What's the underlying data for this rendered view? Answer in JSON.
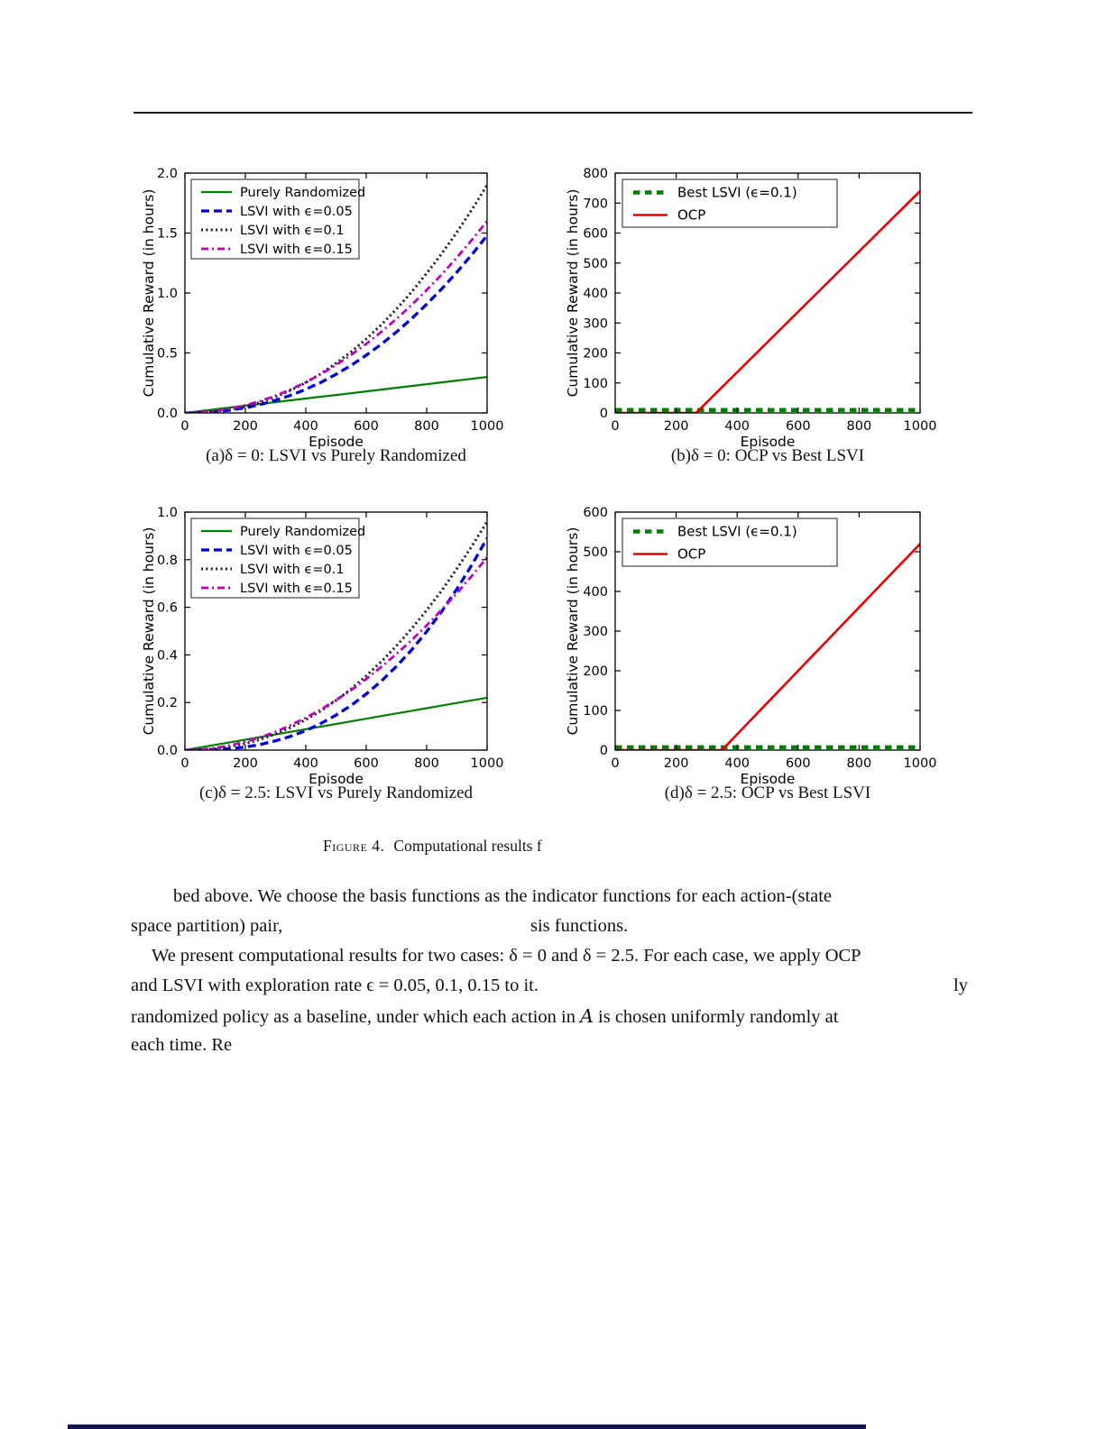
{
  "page": {
    "figure_caption": {
      "label": "Figure 4.",
      "text": "Computational results f"
    },
    "body": {
      "line1": "bed above. We choose the basis functions as the indicator functions for each action-(state",
      "line2_left": "space partition) pair,",
      "line2_mid": "sis functions.",
      "line3": "We present computational results for two cases: δ = 0 and δ = 2.5. For each case, we apply OCP",
      "line4_left": "and LSVI with exploration rate ϵ = 0.05, 0.1, 0.15 to it.",
      "line4_right": "ly",
      "line5_pre": "randomized policy as a baseline, under which each action in ",
      "line5_script": "A",
      "line5_post": " is chosen uniformly randomly at",
      "line6": "each time. Re"
    },
    "accent_colors": {
      "green": "#008000",
      "blue": "#0000dd",
      "black": "#1a1a1a",
      "magenta": "#c000c0",
      "red": "#ee0000"
    }
  },
  "chart_data": [
    {
      "type": "line",
      "caption": "(a)δ = 0: LSVI vs Purely Randomized",
      "xlabel": "Episode",
      "ylabel": "Cumulative Reward (in hours)",
      "xlim": [
        0,
        1000
      ],
      "ylim": [
        0,
        2.0
      ],
      "xticks": [
        "0",
        "200",
        "400",
        "600",
        "800",
        "1000"
      ],
      "yticks": [
        "0.0",
        "0.5",
        "1.0",
        "1.5",
        "2.0"
      ],
      "legend_position": "upper-left",
      "grid": false,
      "x": [
        0,
        50,
        100,
        150,
        200,
        250,
        300,
        350,
        400,
        450,
        500,
        550,
        600,
        650,
        700,
        750,
        800,
        850,
        900,
        950,
        1000
      ],
      "series": [
        {
          "name": "Purely Randomized",
          "color": "#008000",
          "style": "solid",
          "width": 2.2,
          "y": [
            0,
            0.015,
            0.03,
            0.045,
            0.06,
            0.075,
            0.09,
            0.105,
            0.12,
            0.135,
            0.15,
            0.165,
            0.18,
            0.195,
            0.21,
            0.225,
            0.24,
            0.255,
            0.27,
            0.285,
            0.3
          ]
        },
        {
          "name": "LSVI with ϵ=0.05",
          "color": "#0000dd",
          "style": "dashed",
          "width": 3.3,
          "y": [
            0,
            0.002,
            0.009,
            0.023,
            0.043,
            0.07,
            0.105,
            0.147,
            0.197,
            0.255,
            0.322,
            0.397,
            0.481,
            0.573,
            0.675,
            0.786,
            0.906,
            1.035,
            1.174,
            1.322,
            1.48
          ]
        },
        {
          "name": "LSVI with ϵ=0.1",
          "color": "#1a1a1a",
          "style": "dotted",
          "width": 3,
          "y": [
            0,
            0.003,
            0.012,
            0.029,
            0.055,
            0.089,
            0.134,
            0.189,
            0.253,
            0.328,
            0.414,
            0.51,
            0.617,
            0.736,
            0.866,
            1.009,
            1.164,
            1.329,
            1.507,
            1.697,
            1.9
          ]
        },
        {
          "name": "LSVI with ϵ=0.15",
          "color": "#c000c0",
          "style": "dashdot",
          "width": 2.8,
          "y": [
            0,
            0.004,
            0.016,
            0.036,
            0.064,
            0.1,
            0.144,
            0.196,
            0.256,
            0.324,
            0.4,
            0.484,
            0.576,
            0.676,
            0.784,
            0.9,
            1.024,
            1.156,
            1.296,
            1.444,
            1.6
          ]
        }
      ]
    },
    {
      "type": "line",
      "caption": "(b)δ = 0: OCP vs Best LSVI",
      "xlabel": "Episode",
      "ylabel": "Cumulative Reward (in hours)",
      "xlim": [
        0,
        1000
      ],
      "ylim": [
        0,
        800
      ],
      "xticks": [
        "0",
        "200",
        "400",
        "600",
        "800",
        "1000"
      ],
      "yticks": [
        "0",
        "100",
        "200",
        "300",
        "400",
        "500",
        "600",
        "700",
        "800"
      ],
      "legend_position": "upper-left",
      "grid": false,
      "series": [
        {
          "name": "Best LSVI (ϵ=0.1)",
          "color": "#008000",
          "style": "dashed-sq",
          "width": 4.5,
          "x": [
            0,
            1000
          ],
          "y": [
            10,
            10
          ]
        },
        {
          "name": "OCP",
          "color": "#ee0000",
          "style": "solid",
          "width": 2.6,
          "x": [
            0,
            265,
            1000
          ],
          "y": [
            0,
            0,
            740
          ]
        }
      ]
    },
    {
      "type": "line",
      "caption": "(c)δ = 2.5: LSVI vs Purely Randomized",
      "xlabel": "Episode",
      "ylabel": "Cumulative Reward (in hours)",
      "xlim": [
        0,
        1000
      ],
      "ylim": [
        0,
        1.0
      ],
      "xticks": [
        "0",
        "200",
        "400",
        "600",
        "800",
        "1000"
      ],
      "yticks": [
        "0.0",
        "0.2",
        "0.4",
        "0.6",
        "0.8",
        "1.0"
      ],
      "legend_position": "upper-left",
      "grid": false,
      "x": [
        0,
        50,
        100,
        150,
        200,
        250,
        300,
        350,
        400,
        450,
        500,
        550,
        600,
        650,
        700,
        750,
        800,
        850,
        900,
        950,
        1000
      ],
      "series": [
        {
          "name": "Purely Randomized",
          "color": "#008000",
          "style": "solid",
          "width": 2.2,
          "y": [
            0,
            0.011,
            0.022,
            0.033,
            0.044,
            0.055,
            0.066,
            0.077,
            0.088,
            0.099,
            0.11,
            0.121,
            0.132,
            0.143,
            0.154,
            0.165,
            0.176,
            0.187,
            0.198,
            0.209,
            0.22
          ]
        },
        {
          "name": "LSVI with ϵ=0.05",
          "color": "#0000dd",
          "style": "dashed",
          "width": 3.3,
          "y": [
            0,
            0.0004,
            0.002,
            0.006,
            0.013,
            0.024,
            0.039,
            0.058,
            0.082,
            0.112,
            0.147,
            0.188,
            0.236,
            0.29,
            0.352,
            0.421,
            0.498,
            0.583,
            0.677,
            0.779,
            0.89
          ]
        },
        {
          "name": "LSVI with ϵ=0.1",
          "color": "#1a1a1a",
          "style": "dotted",
          "width": 3,
          "y": [
            0,
            0.001,
            0.006,
            0.015,
            0.028,
            0.045,
            0.068,
            0.095,
            0.128,
            0.165,
            0.209,
            0.257,
            0.312,
            0.372,
            0.438,
            0.51,
            0.588,
            0.671,
            0.762,
            0.858,
            0.96
          ]
        },
        {
          "name": "LSVI with ϵ=0.15",
          "color": "#c000c0",
          "style": "dashdot",
          "width": 2.8,
          "y": [
            0,
            0.002,
            0.009,
            0.02,
            0.035,
            0.054,
            0.077,
            0.105,
            0.136,
            0.171,
            0.21,
            0.252,
            0.299,
            0.35,
            0.404,
            0.462,
            0.524,
            0.59,
            0.66,
            0.733,
            0.81
          ]
        }
      ]
    },
    {
      "type": "line",
      "caption": "(d)δ = 2.5: OCP vs Best LSVI",
      "xlabel": "Episode",
      "ylabel": "Cumulative Reward (in hours)",
      "xlim": [
        0,
        1000
      ],
      "ylim": [
        0,
        600
      ],
      "xticks": [
        "0",
        "200",
        "400",
        "600",
        "800",
        "1000"
      ],
      "yticks": [
        "0",
        "100",
        "200",
        "300",
        "400",
        "500",
        "600"
      ],
      "legend_position": "upper-left",
      "grid": false,
      "series": [
        {
          "name": "Best LSVI (ϵ=0.1)",
          "color": "#008000",
          "style": "dashed-sq",
          "width": 4.5,
          "x": [
            0,
            1000
          ],
          "y": [
            7,
            7
          ]
        },
        {
          "name": "OCP",
          "color": "#ee0000",
          "style": "solid",
          "width": 2.6,
          "x": [
            0,
            350,
            1000
          ],
          "y": [
            0,
            0,
            520
          ]
        }
      ]
    }
  ]
}
